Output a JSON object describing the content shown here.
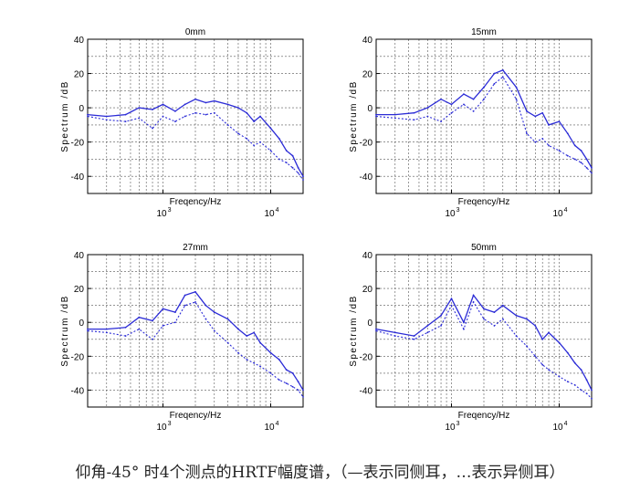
{
  "caption": "仰角-45° 时4个测点的HRTF幅度谱，（—表示同侧耳，…表示异侧耳）",
  "colors": {
    "curve": "#2b2bd6",
    "grid": "#555555",
    "axis": "#000000",
    "text": "#000000"
  },
  "chart_data": [
    {
      "type": "line",
      "title": "0mm",
      "xlabel": "Freqency/Hz",
      "ylabel": "Spectrum /dB",
      "xscale": "log",
      "xlim": [
        200,
        20000
      ],
      "ylim": [
        -50,
        40
      ],
      "yticks": [
        40,
        20,
        0,
        -20,
        -40
      ],
      "xticks": [
        "10^3",
        "10^4"
      ],
      "grid": true,
      "x": [
        200,
        300,
        450,
        600,
        800,
        1000,
        1300,
        1600,
        2000,
        2500,
        3000,
        4000,
        5000,
        6000,
        7000,
        8000,
        10000,
        12000,
        14000,
        16000,
        18000,
        20000
      ],
      "series": [
        {
          "style": "solid",
          "values": [
            -4,
            -5,
            -4,
            0,
            -1,
            2,
            -2,
            2,
            5,
            3,
            4,
            2,
            0,
            -3,
            -8,
            -5,
            -12,
            -18,
            -25,
            -28,
            -35,
            -40
          ]
        },
        {
          "style": "dotted",
          "values": [
            -5,
            -7,
            -8,
            -6,
            -12,
            -5,
            -8,
            -5,
            -3,
            -4,
            -3,
            -10,
            -15,
            -18,
            -22,
            -20,
            -25,
            -30,
            -32,
            -35,
            -38,
            -42
          ]
        }
      ]
    },
    {
      "type": "line",
      "title": "15mm",
      "xlabel": "Freqency/Hz",
      "ylabel": "Spectrum /dB",
      "xscale": "log",
      "xlim": [
        200,
        20000
      ],
      "ylim": [
        -50,
        40
      ],
      "yticks": [
        40,
        20,
        0,
        -20,
        -40
      ],
      "xticks": [
        "10^3",
        "10^4"
      ],
      "grid": true,
      "x": [
        200,
        300,
        450,
        600,
        800,
        1000,
        1300,
        1600,
        2000,
        2500,
        3000,
        4000,
        5000,
        6000,
        7000,
        8000,
        10000,
        12000,
        14000,
        16000,
        18000,
        20000
      ],
      "series": [
        {
          "style": "solid",
          "values": [
            -4,
            -4,
            -3,
            0,
            5,
            2,
            8,
            5,
            12,
            20,
            22,
            12,
            -2,
            -5,
            -3,
            -10,
            -8,
            -15,
            -22,
            -25,
            -30,
            -35
          ]
        },
        {
          "style": "dotted",
          "values": [
            -5,
            -6,
            -7,
            -5,
            -8,
            -3,
            2,
            -2,
            5,
            14,
            18,
            5,
            -15,
            -20,
            -18,
            -22,
            -25,
            -28,
            -30,
            -32,
            -35,
            -38
          ]
        }
      ]
    },
    {
      "type": "line",
      "title": "27mm",
      "xlabel": "Freqency/Hz",
      "ylabel": "Spectrum /dB",
      "xscale": "log",
      "xlim": [
        200,
        20000
      ],
      "ylim": [
        -50,
        40
      ],
      "yticks": [
        40,
        20,
        0,
        -20,
        -40
      ],
      "xticks": [
        "10^3",
        "10^4"
      ],
      "grid": true,
      "x": [
        200,
        300,
        450,
        600,
        800,
        1000,
        1300,
        1600,
        2000,
        2500,
        3000,
        4000,
        5000,
        6000,
        7000,
        8000,
        10000,
        12000,
        14000,
        16000,
        18000,
        20000
      ],
      "series": [
        {
          "style": "solid",
          "values": [
            -4,
            -4,
            -3,
            3,
            1,
            8,
            6,
            16,
            18,
            10,
            6,
            2,
            -4,
            -8,
            -6,
            -12,
            -18,
            -22,
            -28,
            -30,
            -35,
            -40
          ]
        },
        {
          "style": "dotted",
          "values": [
            -5,
            -6,
            -8,
            -4,
            -10,
            -2,
            0,
            10,
            12,
            2,
            -5,
            -12,
            -18,
            -22,
            -24,
            -26,
            -30,
            -34,
            -36,
            -38,
            -40,
            -44
          ]
        }
      ]
    },
    {
      "type": "line",
      "title": "50mm",
      "xlabel": "Freqency/Hz",
      "ylabel": "Spectrum /dB",
      "xscale": "log",
      "xlim": [
        200,
        20000
      ],
      "ylim": [
        -50,
        40
      ],
      "yticks": [
        40,
        20,
        0,
        -20,
        -40
      ],
      "xticks": [
        "10^3",
        "10^4"
      ],
      "grid": true,
      "x": [
        200,
        300,
        450,
        600,
        800,
        1000,
        1300,
        1600,
        2000,
        2500,
        3000,
        4000,
        5000,
        6000,
        7000,
        8000,
        10000,
        12000,
        14000,
        16000,
        18000,
        20000
      ],
      "series": [
        {
          "style": "solid",
          "values": [
            -4,
            -6,
            -8,
            -2,
            4,
            14,
            0,
            16,
            8,
            6,
            10,
            4,
            2,
            -2,
            -10,
            -6,
            -12,
            -18,
            -24,
            -28,
            -34,
            -40
          ]
        },
        {
          "style": "dotted",
          "values": [
            -5,
            -8,
            -10,
            -6,
            -2,
            10,
            -4,
            12,
            2,
            -2,
            2,
            -8,
            -14,
            -20,
            -25,
            -28,
            -32,
            -35,
            -37,
            -40,
            -42,
            -45
          ]
        }
      ]
    }
  ]
}
